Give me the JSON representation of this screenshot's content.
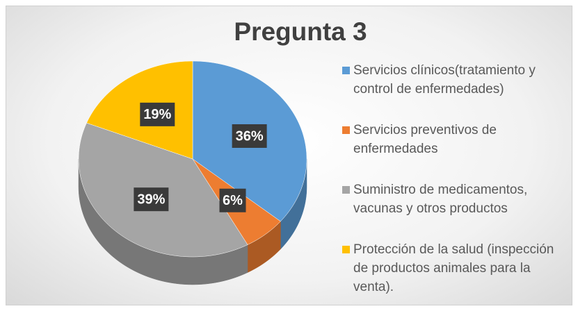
{
  "chart_data": {
    "type": "pie",
    "title": "Pregunta 3",
    "categories": [
      "Servicios clínicos(tratamiento y control de enfermedades)",
      "Servicios preventivos de enfermedades",
      "Suministro de medicamentos, vacunas y otros productos",
      "Protección de la salud (inspección de productos animales para la venta)."
    ],
    "values": [
      36,
      6,
      39,
      19
    ],
    "value_labels": [
      "36%",
      "6%",
      "39%",
      "19%"
    ],
    "colors": [
      "#5b9bd5",
      "#ed7d31",
      "#a5a5a5",
      "#ffc000"
    ]
  }
}
